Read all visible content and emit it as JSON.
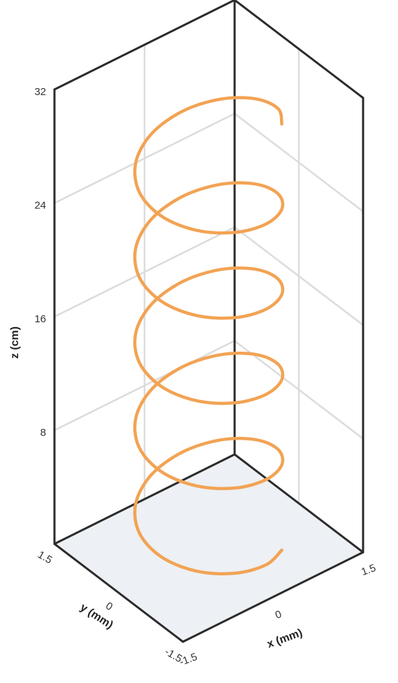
{
  "chart_data": {
    "type": "helix3d",
    "xlabel": "x (mm)",
    "ylabel": "y (mm)",
    "zlabel": "z (cm)",
    "xlim": [
      -1.5,
      1.5
    ],
    "ylim": [
      -1.5,
      1.5
    ],
    "zlim": [
      0,
      32
    ],
    "xticks": [
      -1.5,
      0,
      1.5
    ],
    "yticks": [
      -1.5,
      0,
      1.5
    ],
    "zticks": [
      8,
      16,
      24,
      32
    ],
    "grid": true,
    "series": [
      {
        "color": "#f2a354",
        "x": [
          0.71,
          0.26,
          -0.26,
          -0.71,
          -0.97,
          -0.97,
          -0.71,
          -0.26,
          0.26,
          0.71,
          0.97,
          0.97,
          0.71,
          0.26,
          -0.26,
          -0.71,
          -0.97,
          -0.97,
          -0.71,
          -0.26,
          0.26,
          0.71,
          0.97,
          0.97,
          0.71,
          0.26,
          -0.26,
          -0.71,
          -0.97,
          -0.97,
          -0.71,
          -0.26,
          0.26,
          0.71,
          0.97,
          0.97,
          0.71,
          0.26,
          -0.26,
          -0.71,
          -0.97,
          -0.97,
          -0.71,
          -0.26,
          0.26,
          0.71,
          0.97,
          0.97,
          0.71,
          0.26,
          -0.26,
          -0.71,
          -0.97,
          -0.97,
          -0.71,
          -0.26,
          0.26,
          0.71,
          0.97,
          0.97,
          0.71
        ],
        "y": [
          -0.71,
          -0.97,
          -0.97,
          -0.71,
          -0.26,
          0.26,
          0.71,
          0.97,
          0.97,
          0.71,
          0.26,
          -0.26,
          -0.71,
          -0.97,
          -0.97,
          -0.71,
          -0.26,
          0.26,
          0.71,
          0.97,
          0.97,
          0.71,
          0.26,
          -0.26,
          -0.71,
          -0.97,
          -0.97,
          -0.71,
          -0.26,
          0.26,
          0.71,
          0.97,
          0.97,
          0.71,
          0.26,
          -0.26,
          -0.71,
          -0.97,
          -0.97,
          -0.71,
          -0.26,
          0.26,
          0.71,
          0.97,
          0.97,
          0.71,
          0.26,
          -0.26,
          -0.71,
          -0.97,
          -0.97,
          -0.71,
          -0.26,
          0.26,
          0.71,
          0.97,
          0.97,
          0.71,
          0.26,
          -0.26,
          -0.71
        ],
        "z": [
          0,
          0.5,
          1,
          1.5,
          2,
          2.5,
          3,
          3.5,
          4,
          4.5,
          5,
          5.5,
          6,
          6.5,
          7,
          7.5,
          8,
          8.5,
          9,
          9.5,
          10,
          10.5,
          11,
          11.5,
          12,
          12.5,
          13,
          13.5,
          14,
          14.5,
          15,
          15.5,
          16,
          16.5,
          17,
          17.5,
          18,
          18.5,
          19,
          19.5,
          20,
          20.5,
          21,
          21.5,
          22,
          22.5,
          23,
          23.5,
          24,
          24.5,
          25,
          25.5,
          26,
          26.5,
          27,
          27.5,
          28,
          28.5,
          29,
          29.5,
          30
        ]
      }
    ]
  }
}
